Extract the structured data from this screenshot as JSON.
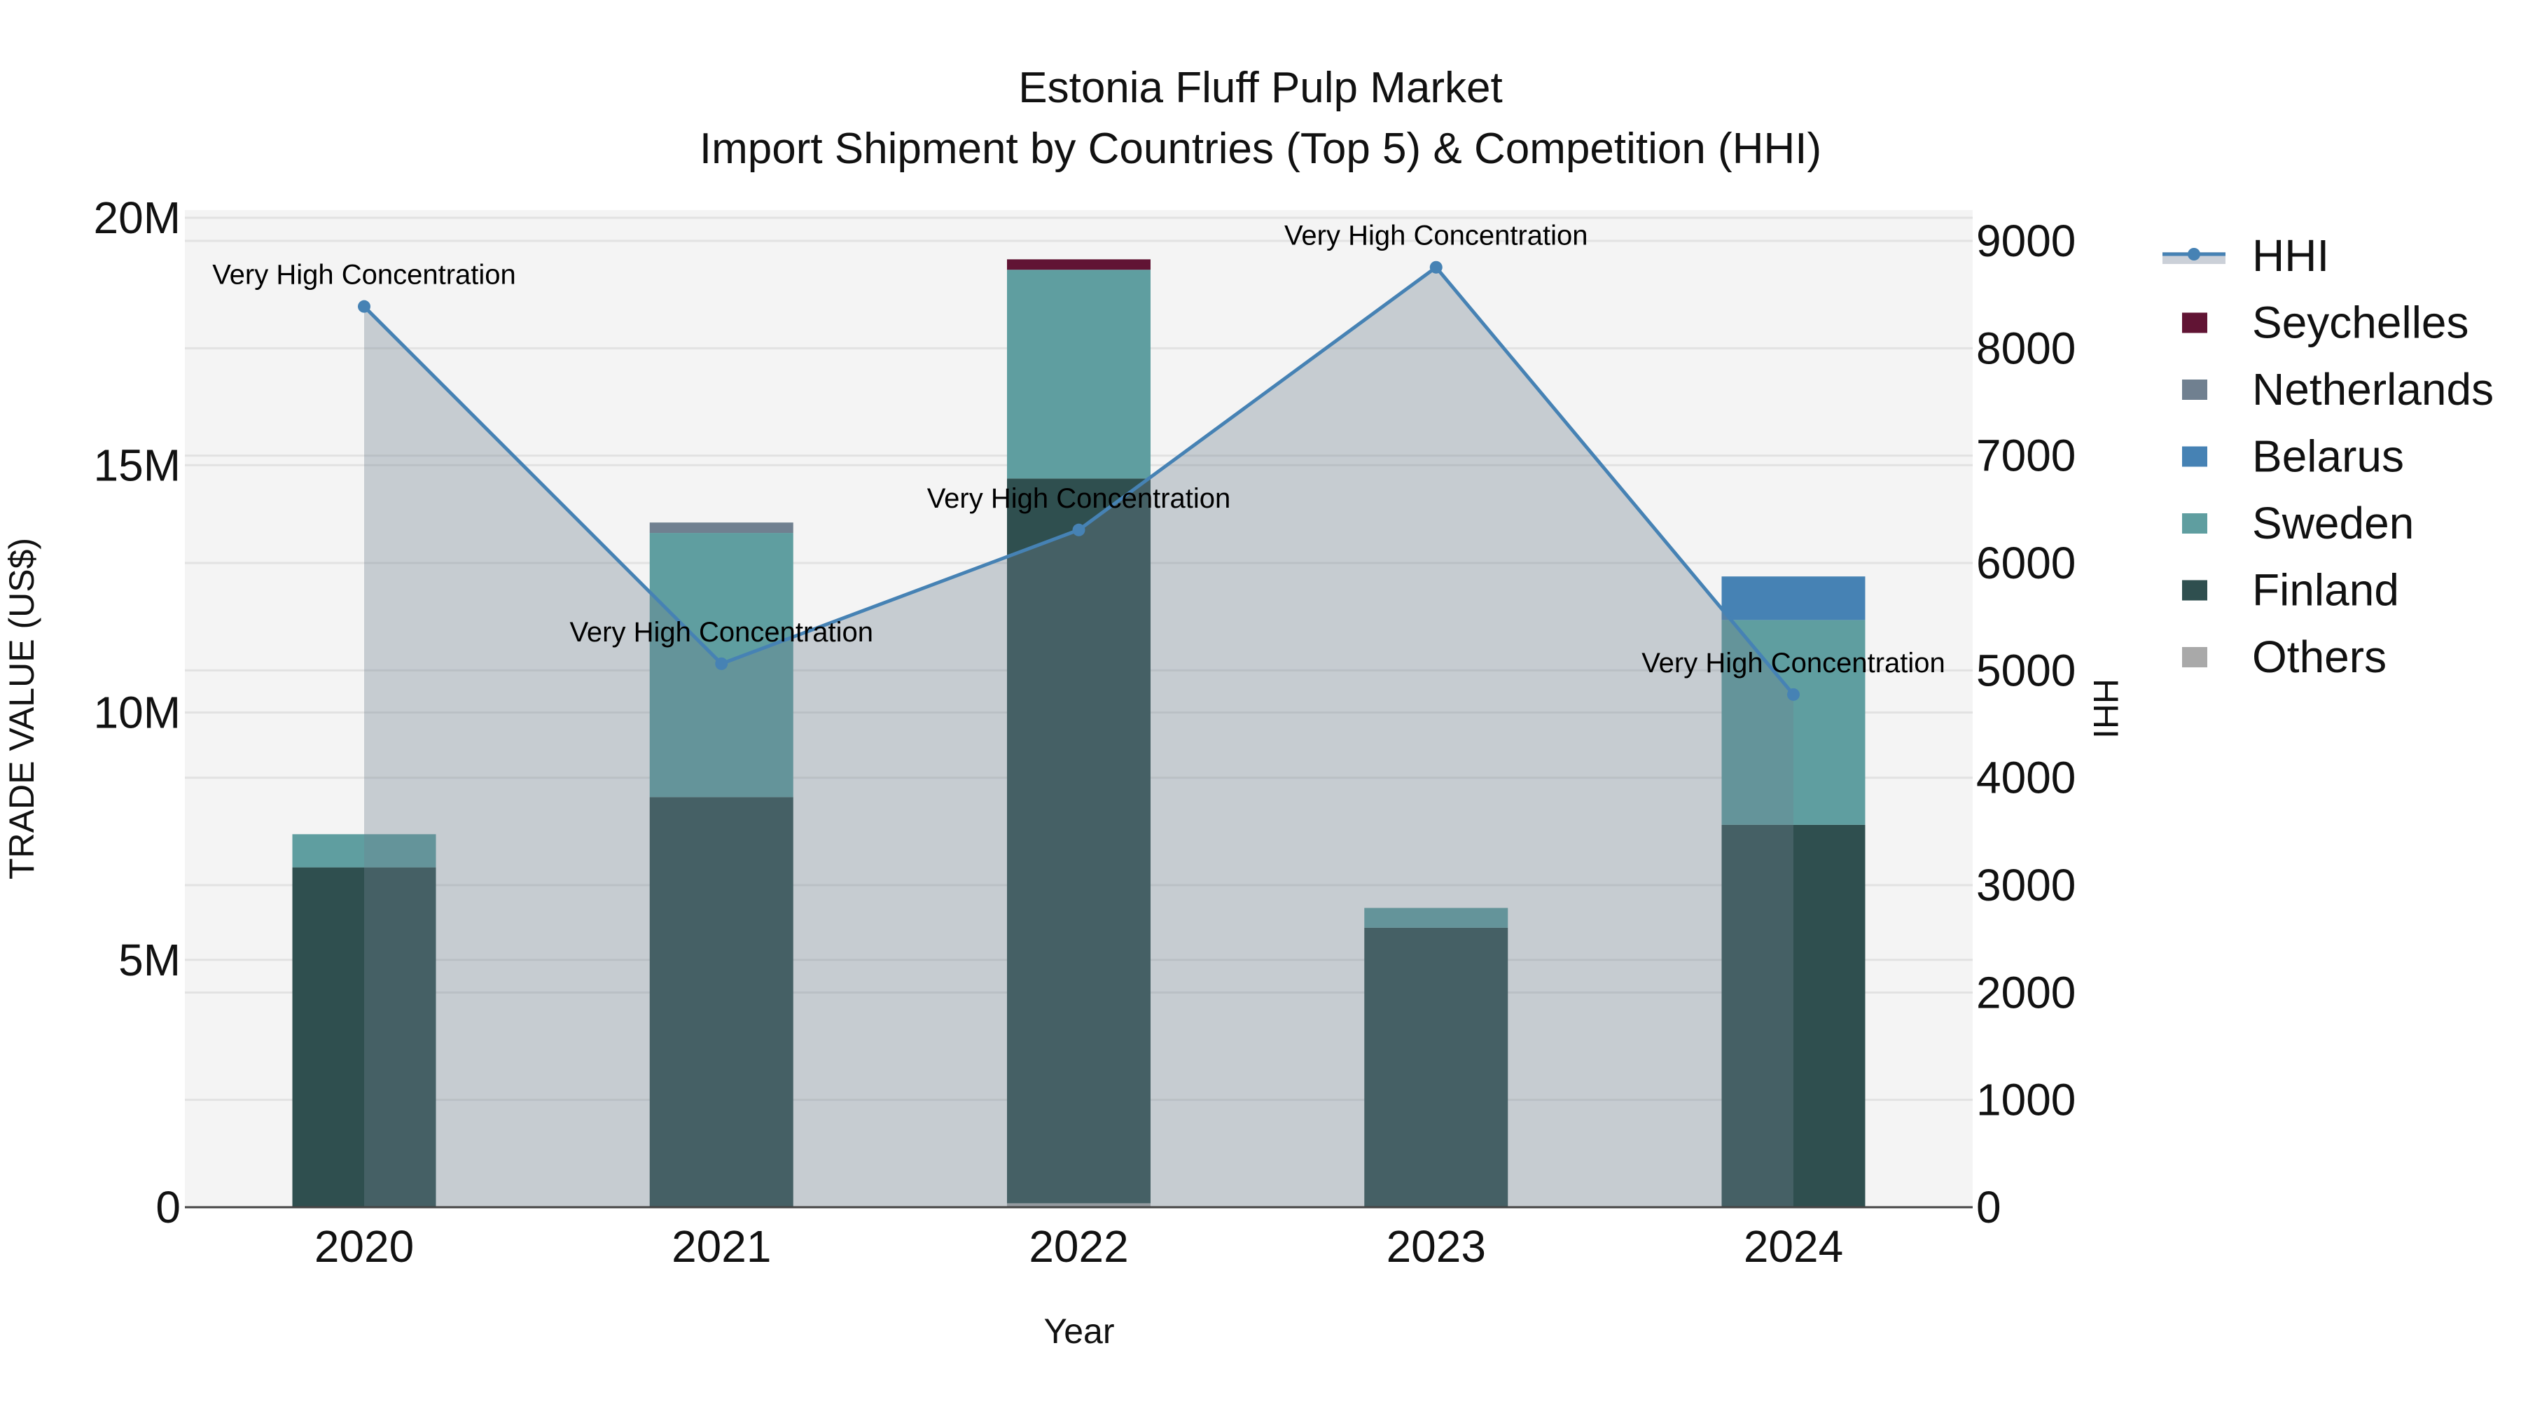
{
  "chart_data": {
    "type": "bar",
    "subtype": "stacked bar with secondary-axis line/area",
    "title": "Estonia Fluff Pulp Market",
    "subtitle": "Import Shipment by Countries (Top 5) & Competition (HHI)",
    "xlabel": "Year",
    "ylabel": "TRADE VALUE (US$)",
    "y2label": "HHI",
    "categories": [
      "2020",
      "2021",
      "2022",
      "2023",
      "2024"
    ],
    "ylim": [
      0,
      20000000
    ],
    "y_ticks": [
      0,
      5000000,
      10000000,
      15000000,
      20000000
    ],
    "y_tick_labels": [
      "0",
      "5M",
      "10M",
      "15M",
      "20M"
    ],
    "y2lim": [
      0,
      9000
    ],
    "y2_ticks": [
      0,
      1000,
      2000,
      3000,
      4000,
      5000,
      6000,
      7000,
      8000,
      9000
    ],
    "y2_tick_labels": [
      "0",
      "1000",
      "2000",
      "3000",
      "4000",
      "5000",
      "6000",
      "7000",
      "8000",
      "9000"
    ],
    "grid": true,
    "legend_position": "right",
    "series": [
      {
        "name": "Others",
        "color": "#A9A9A9",
        "axis": "y",
        "values": [
          0,
          0,
          80000,
          0,
          0
        ]
      },
      {
        "name": "Finland",
        "color": "#2F4F4F",
        "axis": "y",
        "values": [
          6870000,
          8290000,
          14650000,
          5650000,
          7730000
        ]
      },
      {
        "name": "Sweden",
        "color": "#5F9EA0",
        "axis": "y",
        "values": [
          670000,
          5340000,
          4220000,
          400000,
          4140000
        ]
      },
      {
        "name": "Belarus",
        "color": "#4682B4",
        "axis": "y",
        "values": [
          0,
          0,
          0,
          0,
          880000
        ]
      },
      {
        "name": "Netherlands",
        "color": "#708090",
        "axis": "y",
        "values": [
          0,
          210000,
          0,
          0,
          0
        ]
      },
      {
        "name": "Seychelles",
        "color": "#611434",
        "axis": "y",
        "values": [
          0,
          0,
          210000,
          0,
          0
        ]
      }
    ],
    "line_series": {
      "name": "HHI",
      "color": "#4682B4",
      "fill": "rgba(112,128,144,0.35)",
      "axis": "y2",
      "values": [
        8389,
        5062,
        6308,
        8754,
        4775
      ],
      "annotations": [
        "Very High Concentration",
        "Very High Concentration",
        "Very High Concentration",
        "Very High Concentration",
        "Very High Concentration"
      ]
    },
    "legend": [
      {
        "name": "HHI",
        "type": "line",
        "color": "#4682B4"
      },
      {
        "name": "Seychelles",
        "type": "bar",
        "color": "#611434"
      },
      {
        "name": "Netherlands",
        "type": "bar",
        "color": "#708090"
      },
      {
        "name": "Belarus",
        "type": "bar",
        "color": "#4682B4"
      },
      {
        "name": "Sweden",
        "type": "bar",
        "color": "#5F9EA0"
      },
      {
        "name": "Finland",
        "type": "bar",
        "color": "#2F4F4F"
      },
      {
        "name": "Others",
        "type": "bar",
        "color": "#A9A9A9"
      }
    ]
  },
  "colors": {
    "plot_bg": "#F4F4F4",
    "grid": "#E2E2E2",
    "axis_line": "#444444"
  }
}
